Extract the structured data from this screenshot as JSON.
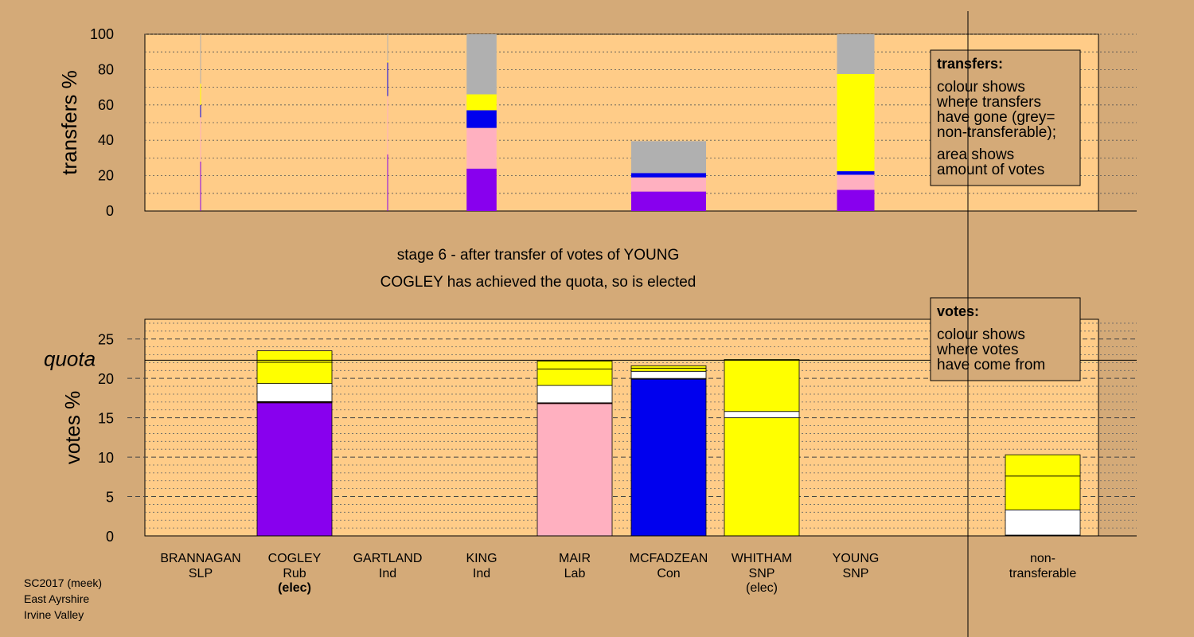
{
  "footer": [
    "SC2017 (meek)",
    "East Ayrshire",
    "Irvine Valley"
  ],
  "stage": {
    "line1": "stage 6 - after transfer of votes of YOUNG",
    "line2": "COGLEY has achieved the quota, so is elected"
  },
  "colors": {
    "background": "#d4aa78",
    "plot": "#ffcc88",
    "Rub": "#8800ee",
    "Lab": "#ffb0c0",
    "Con": "#0000ee",
    "SNP": "#ffff00",
    "Ind": "#ffffff",
    "SLP": "#ff0000",
    "nontransferable": "#b0b0b0",
    "white": "#ffffff"
  },
  "legend_transfers": {
    "heading": "transfers:",
    "lines": [
      "colour shows",
      "where transfers",
      "have gone (grey=",
      "non-transferable);",
      "area shows",
      "amount of votes"
    ]
  },
  "legend_votes": {
    "heading": "votes:",
    "lines": [
      "colour shows",
      "where votes",
      "have come from"
    ]
  },
  "chart_data": [
    {
      "type": "bar",
      "ylabel": "transfers %",
      "ylim": [
        0,
        100
      ],
      "yticks": [
        0,
        20,
        40,
        60,
        80,
        100
      ],
      "categories": [
        "BRANNAGAN",
        "COGLEY",
        "GARTLAND",
        "KING",
        "MAIR",
        "MCFADZEAN",
        "WHITHAM",
        "YOUNG"
      ],
      "bars": [
        {
          "candidate": "BRANNAGAN",
          "width_share": 0.005,
          "segments": [
            {
              "color": "Rub",
              "value": 28
            },
            {
              "color": "Lab",
              "value": 25
            },
            {
              "color": "Con",
              "value": 7
            },
            {
              "color": "SNP",
              "value": 12
            },
            {
              "color": "nontransferable",
              "value": 28
            }
          ]
        },
        {
          "candidate": "GARTLAND",
          "width_share": 0.005,
          "segments": [
            {
              "color": "Rub",
              "value": 32
            },
            {
              "color": "Lab",
              "value": 33
            },
            {
              "color": "Con",
              "value": 19
            },
            {
              "color": "SNP",
              "value": 1
            },
            {
              "color": "nontransferable",
              "value": 15
            }
          ]
        },
        {
          "candidate": "KING",
          "width_share": 0.4,
          "segments": [
            {
              "color": "Rub",
              "value": 24
            },
            {
              "color": "Lab",
              "value": 23
            },
            {
              "color": "Con",
              "value": 10
            },
            {
              "color": "SNP",
              "value": 9
            },
            {
              "color": "nontransferable",
              "value": 34
            }
          ]
        },
        {
          "candidate": "MCFADZEAN",
          "width_share": 1,
          "segments": [
            {
              "color": "Rub",
              "value": 11
            },
            {
              "color": "Lab",
              "value": 8
            },
            {
              "color": "Con",
              "value": 2.5
            },
            {
              "color": "nontransferable",
              "value": 18
            }
          ]
        },
        {
          "candidate": "YOUNG",
          "width_share": 0.5,
          "segments": [
            {
              "color": "Rub",
              "value": 12
            },
            {
              "color": "Lab",
              "value": 8.5
            },
            {
              "color": "Con",
              "value": 2
            },
            {
              "color": "SNP",
              "value": 55
            },
            {
              "color": "nontransferable",
              "value": 22.5
            }
          ]
        }
      ]
    },
    {
      "type": "bar",
      "ylabel": "votes %",
      "ylim": [
        0,
        27.5
      ],
      "yticks": [
        0,
        5,
        10,
        15,
        20,
        25
      ],
      "quota": {
        "label": "quota",
        "value": 22.3
      },
      "categories": [
        "BRANNAGAN",
        "COGLEY",
        "GARTLAND",
        "KING",
        "MAIR",
        "MCFADZEAN",
        "WHITHAM",
        "YOUNG",
        "non-transferable"
      ],
      "candidates": [
        {
          "name": "BRANNAGAN",
          "party": "SLP",
          "note": ""
        },
        {
          "name": "COGLEY",
          "party": "Rub",
          "note": "(elec)"
        },
        {
          "name": "GARTLAND",
          "party": "Ind",
          "note": ""
        },
        {
          "name": "KING",
          "party": "Ind",
          "note": ""
        },
        {
          "name": "MAIR",
          "party": "Lab",
          "note": ""
        },
        {
          "name": "MCFADZEAN",
          "party": "Con",
          "note": ""
        },
        {
          "name": "WHITHAM",
          "party": "SNP",
          "note": "(elec)"
        },
        {
          "name": "YOUNG",
          "party": "SNP",
          "note": ""
        },
        {
          "name": "non-",
          "party": "transferable",
          "note": ""
        }
      ],
      "bars": [
        {
          "candidate": "COGLEY",
          "segments": [
            {
              "color": "Rub",
              "value": 16.9
            },
            {
              "color": "SLP",
              "value": 0.1
            },
            {
              "color": "Ind",
              "value": 0.05
            },
            {
              "color": "white",
              "value": 2.3
            },
            {
              "color": "SNP",
              "value": 2.7
            },
            {
              "color": "SNP",
              "value": 1.45
            }
          ]
        },
        {
          "candidate": "MAIR",
          "segments": [
            {
              "color": "Lab",
              "value": 16.8
            },
            {
              "color": "SLP",
              "value": 0.1
            },
            {
              "color": "white",
              "value": 2.2
            },
            {
              "color": "SNP",
              "value": 2.1
            },
            {
              "color": "SNP",
              "value": 1.0
            }
          ]
        },
        {
          "candidate": "MCFADZEAN",
          "segments": [
            {
              "color": "Con",
              "value": 19.9
            },
            {
              "color": "white",
              "value": 0.1
            },
            {
              "color": "white",
              "value": 0.9
            },
            {
              "color": "SNP",
              "value": 0.4
            },
            {
              "color": "SNP",
              "value": 0.3
            }
          ]
        },
        {
          "candidate": "WHITHAM",
          "segments": [
            {
              "color": "SNP",
              "value": 15.0
            },
            {
              "color": "white",
              "value": 0.8
            },
            {
              "color": "SNP",
              "value": 6.6
            }
          ]
        },
        {
          "candidate": "non-transferable",
          "segments": [
            {
              "color": "white",
              "value": 0.1
            },
            {
              "color": "white",
              "value": 3.2
            },
            {
              "color": "SNP",
              "value": 4.3
            },
            {
              "color": "SNP",
              "value": 2.7
            }
          ]
        }
      ]
    }
  ]
}
